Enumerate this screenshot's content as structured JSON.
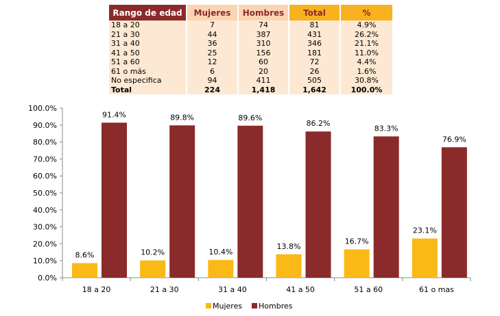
{
  "table": {
    "headers": [
      "Rango de edad",
      "Mujeres",
      "Hombres",
      "Total",
      "%"
    ],
    "rows": [
      [
        "18 a 20",
        "7",
        "74",
        "81",
        "4.9%"
      ],
      [
        "21 a 30",
        "44",
        "387",
        "431",
        "26.2%"
      ],
      [
        "31 a 40",
        "36",
        "310",
        "346",
        "21.1%"
      ],
      [
        "41 a 50",
        "25",
        "156",
        "181",
        "11.0%"
      ],
      [
        "51 a 60",
        "12",
        "60",
        "72",
        "4.4%"
      ],
      [
        "61 o más",
        "6",
        "20",
        "26",
        "1.6%"
      ],
      [
        "No especifica",
        "94",
        "411",
        "505",
        "30.8%"
      ]
    ],
    "total_row": [
      "Total",
      "224",
      "1,418",
      "1,642",
      "100.0%"
    ],
    "colors": {
      "header_dark": "#8b2a2a",
      "header_light": "#fbd4b4",
      "header_orange": "#f8b21f",
      "row_bg": "#fde9d3"
    }
  },
  "chart_data": {
    "type": "bar",
    "categories": [
      "18 a 20",
      "21 a 30",
      "31 a 40",
      "41 a 50",
      "51 a 60",
      "61 o mas"
    ],
    "series": [
      {
        "name": "Mujeres",
        "values": [
          8.6,
          10.2,
          10.4,
          13.8,
          16.7,
          23.1
        ],
        "labels": [
          "8.6%",
          "10.2%",
          "10.4%",
          "13.8%",
          "16.7%",
          "23.1%"
        ],
        "color": "#fbb917"
      },
      {
        "name": "Hombres",
        "values": [
          91.4,
          89.8,
          89.6,
          86.2,
          83.3,
          76.9
        ],
        "labels": [
          "91.4%",
          "89.8%",
          "89.6%",
          "86.2%",
          "83.3%",
          "76.9%"
        ],
        "color": "#8b2a2a"
      }
    ],
    "ylim": [
      0,
      100
    ],
    "yticks": [
      0,
      10,
      20,
      30,
      40,
      50,
      60,
      70,
      80,
      90,
      100
    ],
    "ytick_labels": [
      "0.0%",
      "10.0%",
      "20.0%",
      "30.0%",
      "40.0%",
      "50.0%",
      "60.0%",
      "70.0%",
      "80.0%",
      "90.0%",
      "100.0%"
    ],
    "grid": false,
    "legend_position": "bottom",
    "title": "",
    "xlabel": "",
    "ylabel": ""
  }
}
